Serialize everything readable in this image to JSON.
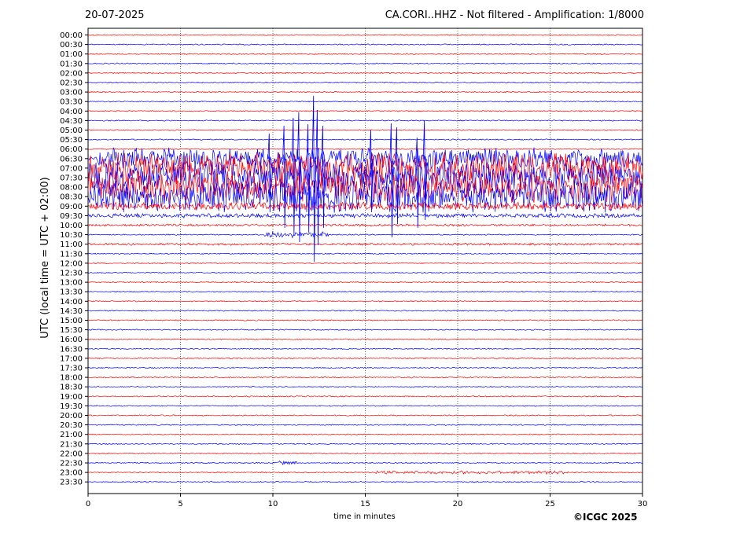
{
  "header": {
    "date": "20-07-2025",
    "title": "CA.CORI..HHZ - Not filtered - Amplification: 1/8000"
  },
  "footer": {
    "copyright": "©ICGC 2025"
  },
  "chart_data": {
    "type": "line",
    "subtype": "helicorder seismogram",
    "xlabel": "time in minutes",
    "ylabel": "UTC (local time = UTC + 02:00)",
    "xlim": [
      0,
      30
    ],
    "x_ticks": [
      0,
      5,
      10,
      15,
      20,
      25,
      30
    ],
    "x_gridlines": "dotted vertical at 5, 10, 15, 20, 25",
    "row_labels": [
      "00:00",
      "00:30",
      "01:00",
      "01:30",
      "02:00",
      "02:30",
      "03:00",
      "03:30",
      "04:00",
      "04:30",
      "05:00",
      "05:30",
      "06:00",
      "06:30",
      "07:00",
      "07:30",
      "08:00",
      "08:30",
      "09:00",
      "09:30",
      "10:00",
      "10:30",
      "11:00",
      "11:30",
      "12:00",
      "12:30",
      "13:00",
      "13:30",
      "14:00",
      "14:30",
      "15:00",
      "15:30",
      "16:00",
      "16:30",
      "17:00",
      "17:30",
      "18:00",
      "18:30",
      "19:00",
      "19:30",
      "20:00",
      "20:30",
      "21:00",
      "21:30",
      "22:00",
      "22:30",
      "23:00",
      "23:30"
    ],
    "trace_colors": [
      "#ff0000",
      "#0000ff"
    ],
    "legend": "none",
    "notable_activity": [
      {
        "row": "06:30",
        "description": "high-amplitude noise begins (blue trace)"
      },
      {
        "row": "07:00",
        "description": "high-amplitude noise across whole row"
      },
      {
        "row": "07:30",
        "description": "high-amplitude noise across whole row"
      },
      {
        "row": "08:00",
        "description": "high-amplitude noise across whole row"
      },
      {
        "row": "08:30",
        "description": "high-amplitude noise across whole row"
      },
      {
        "row": "10:30",
        "x_minutes": 12.3,
        "description": "large spike events between 10 and 13 min"
      },
      {
        "row": "22:30",
        "x_minutes": 10.5,
        "description": "small burst"
      },
      {
        "row": "23:00",
        "x_minutes": 16.5,
        "description": "low-amplitude wave packets"
      }
    ]
  }
}
